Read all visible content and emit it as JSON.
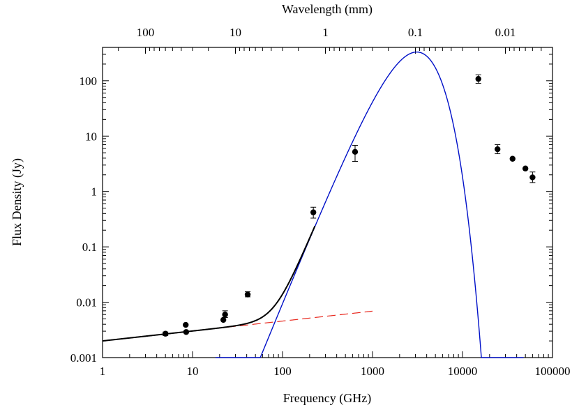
{
  "chart_data": {
    "type": "scatter",
    "xscale": "log",
    "yscale": "log",
    "xlabel": "Frequency (GHz)",
    "ylabel": "Flux Density (Jy)",
    "x2label": "Wavelength (mm)",
    "xlim": [
      1,
      100000
    ],
    "ylim": [
      0.001,
      400
    ],
    "grid": false,
    "xticks": [
      {
        "value": 1,
        "label": "1"
      },
      {
        "value": 10,
        "label": "10"
      },
      {
        "value": 100,
        "label": "100"
      },
      {
        "value": 1000,
        "label": "1000"
      },
      {
        "value": 10000,
        "label": "10000"
      },
      {
        "value": 100000,
        "label": "100000"
      }
    ],
    "yticks": [
      {
        "value": 0.001,
        "label": "0.001"
      },
      {
        "value": 0.01,
        "label": "0.01"
      },
      {
        "value": 0.1,
        "label": "0.1"
      },
      {
        "value": 1,
        "label": "1"
      },
      {
        "value": 10,
        "label": "10"
      },
      {
        "value": 100,
        "label": "100"
      }
    ],
    "x2ticks": [
      {
        "value": 100,
        "label": "100"
      },
      {
        "value": 10,
        "label": "10"
      },
      {
        "value": 1,
        "label": "1"
      },
      {
        "value": 0.1,
        "label": "0.1"
      },
      {
        "value": 0.01,
        "label": "0.01"
      }
    ],
    "points": [
      {
        "x": 5,
        "y": 0.0027,
        "err": [
          0.0025,
          0.0029
        ]
      },
      {
        "x": 8.4,
        "y": 0.0039,
        "err": null
      },
      {
        "x": 8.5,
        "y": 0.0029,
        "err": null
      },
      {
        "x": 22,
        "y": 0.0048,
        "err": null
      },
      {
        "x": 23,
        "y": 0.006,
        "err": [
          0.0053,
          0.007
        ]
      },
      {
        "x": 41,
        "y": 0.0138,
        "err": [
          0.0125,
          0.0155
        ]
      },
      {
        "x": 220,
        "y": 0.42,
        "err": [
          0.33,
          0.52
        ]
      },
      {
        "x": 640,
        "y": 5.2,
        "err": [
          3.5,
          6.8
        ]
      },
      {
        "x": 15000,
        "y": 108,
        "err": [
          90,
          128
        ]
      },
      {
        "x": 24500,
        "y": 5.8,
        "err": [
          4.8,
          7
        ]
      },
      {
        "x": 36000,
        "y": 3.9,
        "err": null
      },
      {
        "x": 50000,
        "y": 2.6,
        "err": null
      },
      {
        "x": 60000,
        "y": 1.8,
        "err": [
          1.45,
          2.25
        ]
      }
    ],
    "curves": [
      {
        "style": "dashed",
        "color": "#e8281e",
        "x": [
          1,
          1000
        ],
        "y": [
          0.002,
          0.0069
        ]
      },
      {
        "style": "solid",
        "color": "#0010c8",
        "peak": {
          "x": 7000,
          "y": 330
        },
        "x": [
          18,
          48000
        ]
      },
      {
        "style": "solid",
        "color": "#000000",
        "x": [
          1,
          230
        ]
      }
    ]
  }
}
